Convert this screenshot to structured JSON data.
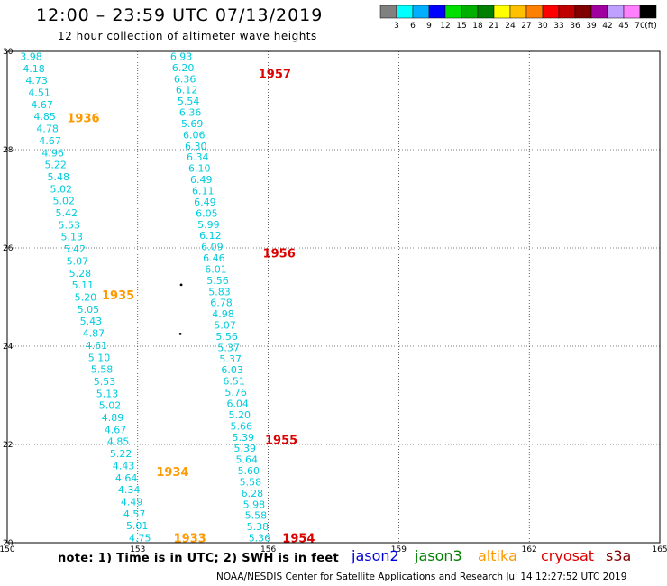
{
  "header": {
    "title": "12:00 – 23:59 UTC 07/13/2019",
    "subtitle": "12 hour collection of altimeter wave heights"
  },
  "color_scale": {
    "labels": [
      "3",
      "6",
      "9",
      "12",
      "15",
      "18",
      "21",
      "24",
      "27",
      "30",
      "33",
      "36",
      "39",
      "42",
      "45",
      "70",
      "(ft)"
    ],
    "colors": [
      "#808080",
      "#00ffff",
      "#00b0ff",
      "#0000ff",
      "#00e000",
      "#00b000",
      "#008000",
      "#ffff00",
      "#ffc000",
      "#ff8000",
      "#ff0000",
      "#c00000",
      "#800000",
      "#a000a0",
      "#c0a0ff",
      "#ff80ff",
      "#000000"
    ]
  },
  "footer": {
    "note": "note:  1) Time is in UTC;  2) SWH is in feet",
    "satellites": [
      {
        "name": "jason2",
        "color": "#0000dd"
      },
      {
        "name": "jason3",
        "color": "#008000"
      },
      {
        "name": "altika",
        "color": "#ff9900"
      },
      {
        "name": "cryosat",
        "color": "#dd0000"
      },
      {
        "name": "s3a",
        "color": "#880000"
      }
    ],
    "credit": "NOAA/NESDIS Center for Satellite Applications and Research     Jul 14 12:27:52 UTC 2019"
  },
  "chart_data": {
    "type": "scatter",
    "xlim": [
      150,
      165
    ],
    "ylim": [
      20,
      30
    ],
    "x_ticks": [
      "150",
      "153",
      "156",
      "159",
      "162",
      "165"
    ],
    "y_ticks": [
      "30",
      "28",
      "26",
      "24",
      "22",
      "20"
    ],
    "grid": true,
    "value_color": "#00ccdd",
    "tracks": [
      {
        "satellite": "altika",
        "color": "#00ccdd",
        "lon_start": 150.55,
        "lat_start": 29.9,
        "lon_end": 153.05,
        "lat_end": 20.1,
        "values": [
          "3.98",
          "4.18",
          "4.73",
          "4.51",
          "4.67",
          "4.85",
          "4.78",
          "4.67",
          "4.96",
          "5.22",
          "5.48",
          "5.02",
          "5.02",
          "5.42",
          "5.53",
          "5.13",
          "5.42",
          "5.07",
          "5.28",
          "5.11",
          "5.20",
          "5.05",
          "5.43",
          "4.87",
          "4.61",
          "5.10",
          "5.58",
          "5.53",
          "5.13",
          "5.02",
          "4.89",
          "4.67",
          "4.85",
          "5.22",
          "4.43",
          "4.64",
          "4.34",
          "4.49",
          "4.57",
          "5.01",
          "4.75"
        ]
      },
      {
        "satellite": "cryosat",
        "color": "#00ccdd",
        "lon_start": 154.0,
        "lat_start": 29.9,
        "lon_end": 155.8,
        "lat_end": 20.1,
        "values": [
          "6.93",
          "6.20",
          "6.36",
          "6.12",
          "5.54",
          "6.36",
          "5.69",
          "6.06",
          "6.30",
          "6.34",
          "6.10",
          "6.49",
          "6.11",
          "6.49",
          "6.05",
          "5.99",
          "6.12",
          "6.09",
          "6.46",
          "6.01",
          "5.56",
          "5.83",
          "6.78",
          "4.98",
          "5.07",
          "5.56",
          "5.37",
          "5.37",
          "6.03",
          "6.51",
          "5.76",
          "6.04",
          "5.20",
          "5.66",
          "5.39",
          "5.39",
          "5.64",
          "5.60",
          "5.58",
          "6.28",
          "5.98",
          "5.58",
          "5.38",
          "5.36"
        ]
      }
    ],
    "time_labels": [
      {
        "text": "1957",
        "lon": 156.15,
        "lat": 29.55,
        "satellite": "cryosat",
        "color": "#dd0000"
      },
      {
        "text": "1936",
        "lon": 151.75,
        "lat": 28.65,
        "satellite": "altika",
        "color": "#ff9900"
      },
      {
        "text": "1956",
        "lon": 156.25,
        "lat": 25.9,
        "satellite": "cryosat",
        "color": "#dd0000"
      },
      {
        "text": "1935",
        "lon": 152.55,
        "lat": 25.05,
        "satellite": "altika",
        "color": "#ff9900"
      },
      {
        "text": "1955",
        "lon": 156.3,
        "lat": 22.1,
        "satellite": "cryosat",
        "color": "#dd0000"
      },
      {
        "text": "1934",
        "lon": 153.8,
        "lat": 21.45,
        "satellite": "altika",
        "color": "#ff9900"
      },
      {
        "text": "1933",
        "lon": 154.2,
        "lat": 20.1,
        "satellite": "altika",
        "color": "#ff9900"
      },
      {
        "text": "1954",
        "lon": 156.7,
        "lat": 20.1,
        "satellite": "cryosat",
        "color": "#dd0000"
      }
    ],
    "land_points": [
      {
        "lon": 154.0,
        "lat": 25.25
      },
      {
        "lon": 153.98,
        "lat": 24.25
      }
    ]
  }
}
